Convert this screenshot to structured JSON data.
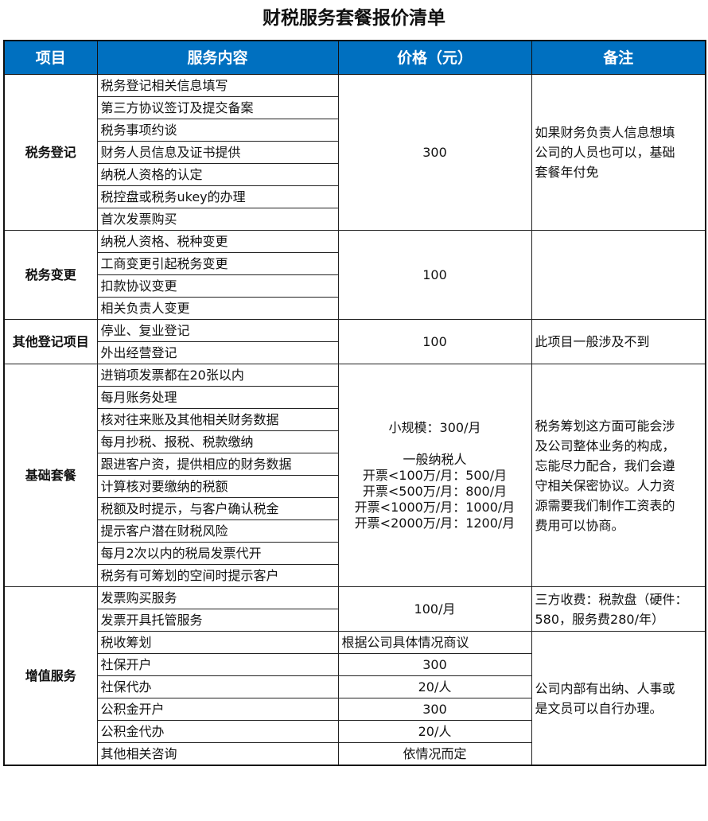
{
  "title": "财税服务套餐报价清单",
  "header": {
    "col1": "项目",
    "col2": "服务内容",
    "col3": "价格（元）",
    "col4": "备注"
  },
  "colors": {
    "header_bg": "#0070c0",
    "header_text": "#ffffff"
  },
  "groups": [
    {
      "name": "税务登记",
      "items": [
        "税务登记相关信息填写",
        "第三方协议签订及提交备案",
        "税务事项约谈",
        "财务人员信息及证书提供",
        "纳税人资格的认定",
        "税控盘或税务ukey的办理",
        "首次发票购买"
      ],
      "prices": [
        {
          "text": "300",
          "rows": 7
        }
      ],
      "notes": [
        {
          "text": "如果财务负责人信息想填\n公司的人员也可以，基础\n套餐年付免",
          "rows": 7
        }
      ]
    },
    {
      "name": "税务变更",
      "items": [
        "纳税人资格、税种变更",
        "工商变更引起税务变更",
        "扣款协议变更",
        "相关负责人变更"
      ],
      "prices": [
        {
          "text": "100",
          "rows": 4
        }
      ],
      "notes": [
        {
          "text": "",
          "rows": 4
        }
      ]
    },
    {
      "name": "其他登记项目",
      "items": [
        "停业、复业登记",
        "外出经营登记"
      ],
      "prices": [
        {
          "text": "100",
          "rows": 2
        }
      ],
      "notes": [
        {
          "text": "此项目一般涉及不到",
          "rows": 2
        }
      ]
    },
    {
      "name": "基础套餐",
      "items": [
        "进销项发票都在20张以内",
        "每月账务处理",
        "核对往来账及其他相关财务数据",
        "每月抄税、报税、税款缴纳",
        "跟进客户资，提供相应的财务数据",
        "计算核对要缴纳的税额",
        "税额及时提示，与客户确认税金",
        "提示客户潜在财税风险",
        "每月2次以内的税局发票代开",
        "税务有可筹划的空间时提示客户"
      ],
      "prices": [
        {
          "text": "小规模：300/月\n\n一般纳税人\n开票<100万/月：500/月\n开票<500万/月：800/月\n开票<1000万/月：1000/月\n开票<2000万/月：1200/月",
          "rows": 10
        }
      ],
      "notes": [
        {
          "text": "税务筹划这方面可能会涉\n及公司整体业务的构成，\n忘能尽力配合，我们会遵\n守相关保密协议。人力资\n源需要我们制作工资表的\n费用可以协商。",
          "rows": 10
        }
      ]
    },
    {
      "name": "增值服务",
      "items": [
        "发票购买服务",
        "发票开具托管服务",
        "税收筹划",
        "社保开户",
        "社保代办",
        "公积金开户",
        "公积金代办",
        "其他相关咨询"
      ],
      "prices": [
        {
          "text": "100/月",
          "rows": 2
        },
        {
          "text": "根据公司具体情况商议",
          "rows": 1,
          "left": true
        },
        {
          "text": "300",
          "rows": 1
        },
        {
          "text": "20/人",
          "rows": 1
        },
        {
          "text": "300",
          "rows": 1
        },
        {
          "text": "20/人",
          "rows": 1
        },
        {
          "text": "依情况而定",
          "rows": 1
        }
      ],
      "notes": [
        {
          "text": "三方收费：税款盘（硬件：\n580，服务费280/年）",
          "rows": 2
        },
        {
          "text": "公司内部有出纳、人事或\n是文员可以自行办理。",
          "rows": 6
        }
      ]
    }
  ]
}
